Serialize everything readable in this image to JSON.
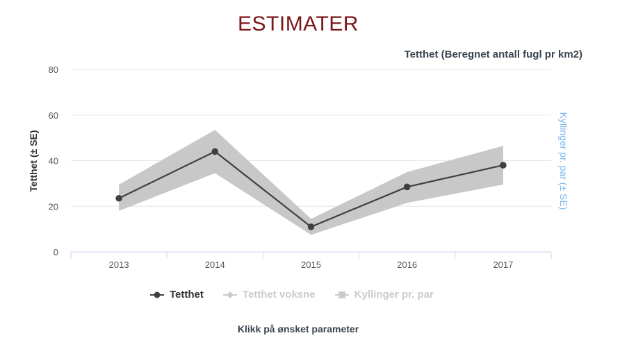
{
  "heading": "ESTIMATER",
  "note": "Klikk på ønsket parameter",
  "colors": {
    "heading": "#7a1518",
    "line": "#404040",
    "band": "#c8c8c8",
    "right_axis": "#7cb5ec",
    "inactive": "#cccccc"
  },
  "chart_data": {
    "type": "line",
    "title": "Tetthet (Beregnet antall fugl pr km2)",
    "ylabel": "Tetthet (± SE)",
    "ylabel_right": "Kyllinger pr. par (± SE)",
    "ylim": [
      0,
      80
    ],
    "yticks": [
      0,
      20,
      40,
      60,
      80
    ],
    "grid": true,
    "legend_position": "bottom",
    "categories": [
      "2013",
      "2014",
      "2015",
      "2016",
      "2017"
    ],
    "series": [
      {
        "name": "Tetthet",
        "visible": true,
        "marker": "circle",
        "values": [
          23.5,
          44,
          11,
          28.5,
          38
        ],
        "lower": [
          18,
          34.5,
          7.5,
          21.5,
          29.5
        ],
        "upper": [
          29.5,
          53.5,
          14.5,
          35,
          46.5
        ]
      },
      {
        "name": "Tetthet voksne",
        "visible": false,
        "marker": "diamond"
      },
      {
        "name": "Kyllinger pr. par",
        "visible": false,
        "marker": "square"
      }
    ]
  }
}
